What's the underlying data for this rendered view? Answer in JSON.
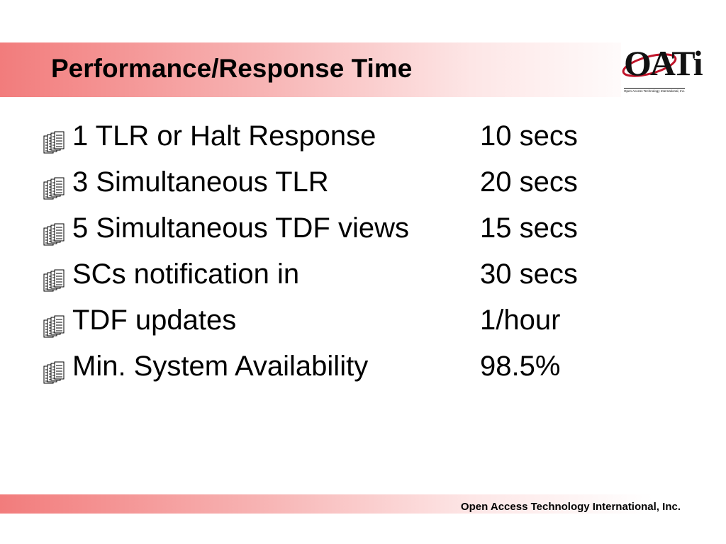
{
  "header": {
    "title": "Performance/Response Time"
  },
  "logo": {
    "text": "OATi",
    "subtitle": "Open Access Technology International, Inc."
  },
  "items": [
    {
      "label": "1 TLR or Halt Response",
      "value": "10 secs"
    },
    {
      "label": "3 Simultaneous TLR",
      "value": "20 secs"
    },
    {
      "label": "5 Simultaneous TDF views",
      "value": "15 secs"
    },
    {
      "label": "SCs notification in",
      "value": "30 secs"
    },
    {
      "label": "TDF updates",
      "value": "1/hour"
    },
    {
      "label": "Min. System Availability",
      "value": "98.5%"
    }
  ],
  "footer": {
    "text": "Open Access Technology International, Inc."
  }
}
